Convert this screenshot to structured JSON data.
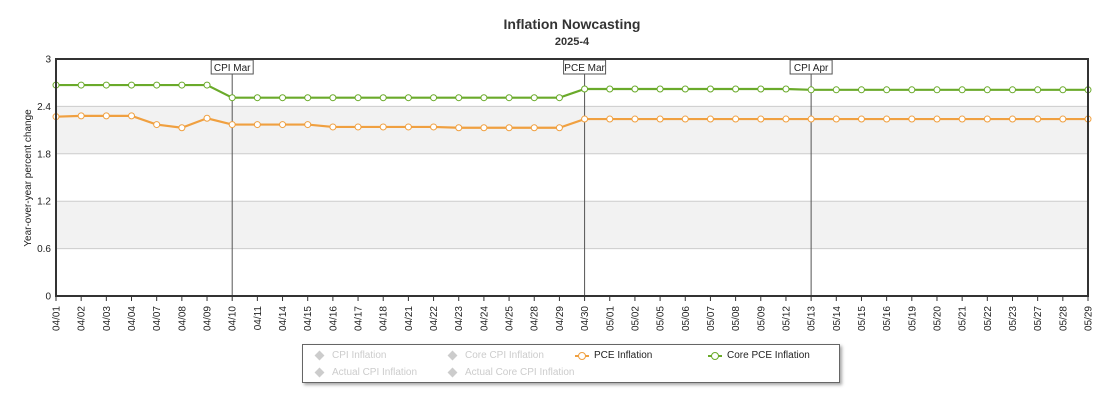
{
  "chart_data": {
    "type": "line",
    "title": "Inflation Nowcasting",
    "subtitle": "2025-4",
    "ylabel": "Year-over-year percent change",
    "ylim": [
      0,
      3
    ],
    "yticks": [
      "0",
      "0.6",
      "1.2",
      "1.8",
      "2.4",
      "3"
    ],
    "ytick_values": [
      0,
      0.6,
      1.2,
      1.8,
      2.4,
      3
    ],
    "categories": [
      "04/01",
      "04/02",
      "04/03",
      "04/04",
      "04/07",
      "04/08",
      "04/09",
      "04/10",
      "04/11",
      "04/14",
      "04/15",
      "04/16",
      "04/17",
      "04/18",
      "04/21",
      "04/22",
      "04/23",
      "04/24",
      "04/25",
      "04/28",
      "04/29",
      "04/30",
      "05/01",
      "05/02",
      "05/05",
      "05/06",
      "05/07",
      "05/08",
      "05/09",
      "05/12",
      "05/13",
      "05/14",
      "05/15",
      "05/16",
      "05/19",
      "05/20",
      "05/21",
      "05/22",
      "05/23",
      "05/27",
      "05/28",
      "05/29"
    ],
    "series": [
      {
        "name": "PCE Inflation",
        "color": "#f0a040",
        "values": [
          2.27,
          2.28,
          2.28,
          2.28,
          2.17,
          2.13,
          2.25,
          2.17,
          2.17,
          2.17,
          2.17,
          2.14,
          2.14,
          2.14,
          2.14,
          2.14,
          2.13,
          2.13,
          2.13,
          2.13,
          2.13,
          2.24,
          2.24,
          2.24,
          2.24,
          2.24,
          2.24,
          2.24,
          2.24,
          2.24,
          2.24,
          2.24,
          2.24,
          2.24,
          2.24,
          2.24,
          2.24,
          2.24,
          2.24,
          2.24,
          2.24,
          2.24
        ]
      },
      {
        "name": "Core PCE Inflation",
        "color": "#6aaa2a",
        "values": [
          2.67,
          2.67,
          2.67,
          2.67,
          2.67,
          2.67,
          2.67,
          2.51,
          2.51,
          2.51,
          2.51,
          2.51,
          2.51,
          2.51,
          2.51,
          2.51,
          2.51,
          2.51,
          2.51,
          2.51,
          2.51,
          2.62,
          2.62,
          2.62,
          2.62,
          2.62,
          2.62,
          2.62,
          2.62,
          2.62,
          2.61,
          2.61,
          2.61,
          2.61,
          2.61,
          2.61,
          2.61,
          2.61,
          2.61,
          2.61,
          2.61,
          2.61
        ]
      }
    ],
    "flags": [
      {
        "label": "CPI Mar",
        "category": "04/10"
      },
      {
        "label": "PCE Mar",
        "category": "04/30"
      },
      {
        "label": "CPI Apr",
        "category": "05/13"
      }
    ],
    "bands": [
      [
        0.6,
        1.2
      ],
      [
        1.8,
        2.4
      ]
    ],
    "grid": true,
    "legend_position": "bottom-center"
  },
  "legend": {
    "items": [
      {
        "label": "CPI Inflation",
        "active": false,
        "color": "#cccccc"
      },
      {
        "label": "Core CPI Inflation",
        "active": false,
        "color": "#cccccc"
      },
      {
        "label": "PCE Inflation",
        "active": true,
        "color": "#f0a040"
      },
      {
        "label": "Core PCE Inflation",
        "active": true,
        "color": "#6aaa2a"
      },
      {
        "label": "Actual CPI Inflation",
        "active": false,
        "color": "#cccccc"
      },
      {
        "label": "Actual Core CPI Inflation",
        "active": false,
        "color": "#cccccc"
      }
    ]
  }
}
